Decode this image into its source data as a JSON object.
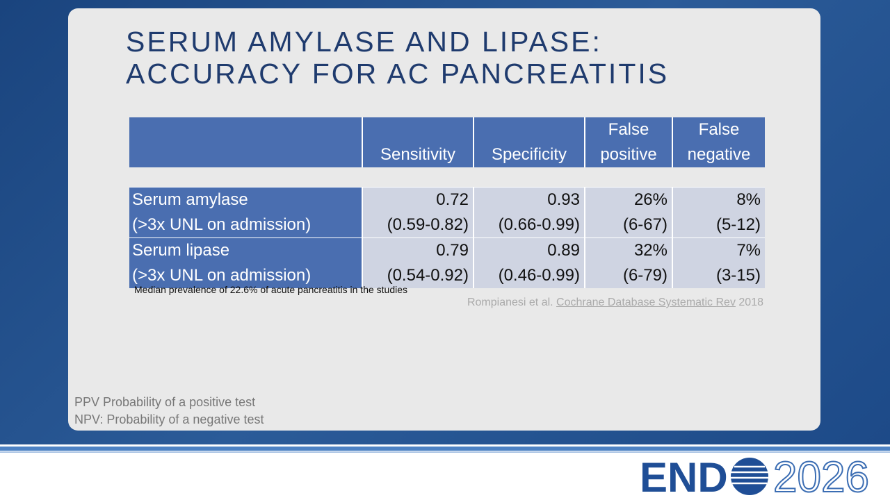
{
  "title": {
    "line1": "SERUM AMYLASE AND LIPASE:",
    "line2": "ACCURACY FOR AC PANCREATITIS"
  },
  "table": {
    "headers": [
      "Sensitivity",
      "Specificity",
      "False positive",
      "False negative"
    ],
    "rows": [
      {
        "label": "Serum amylase",
        "sublabel": "(>3x UNL on admission)",
        "cells": [
          {
            "value": "0.72",
            "range": "(0.59-0.82)"
          },
          {
            "value": "0.93",
            "range": "(0.66-0.99)"
          },
          {
            "value": "26%",
            "range": "(6-67)"
          },
          {
            "value": "8%",
            "range": "(5-12)"
          }
        ]
      },
      {
        "label": "Serum lipase",
        "sublabel": "(>3x UNL on admission)",
        "cells": [
          {
            "value": "0.79",
            "range": "(0.54-0.92)"
          },
          {
            "value": "0.89",
            "range": "(0.46-0.99)"
          },
          {
            "value": "32%",
            "range": "(6-79)"
          },
          {
            "value": "7%",
            "range": "(3-15)"
          }
        ]
      }
    ]
  },
  "footnote": "Median prevalence of 22.6% of acute pancreatitis in the studies",
  "citation": {
    "authors": "Rompianesi et al.",
    "journal": "Cochrane Database Systematic Rev",
    "year": "2018"
  },
  "notes": [
    "PPV Probability of a positive test",
    "NPV: Probability of a negative test"
  ],
  "logo": {
    "brand": "END",
    "year": "2026"
  }
}
